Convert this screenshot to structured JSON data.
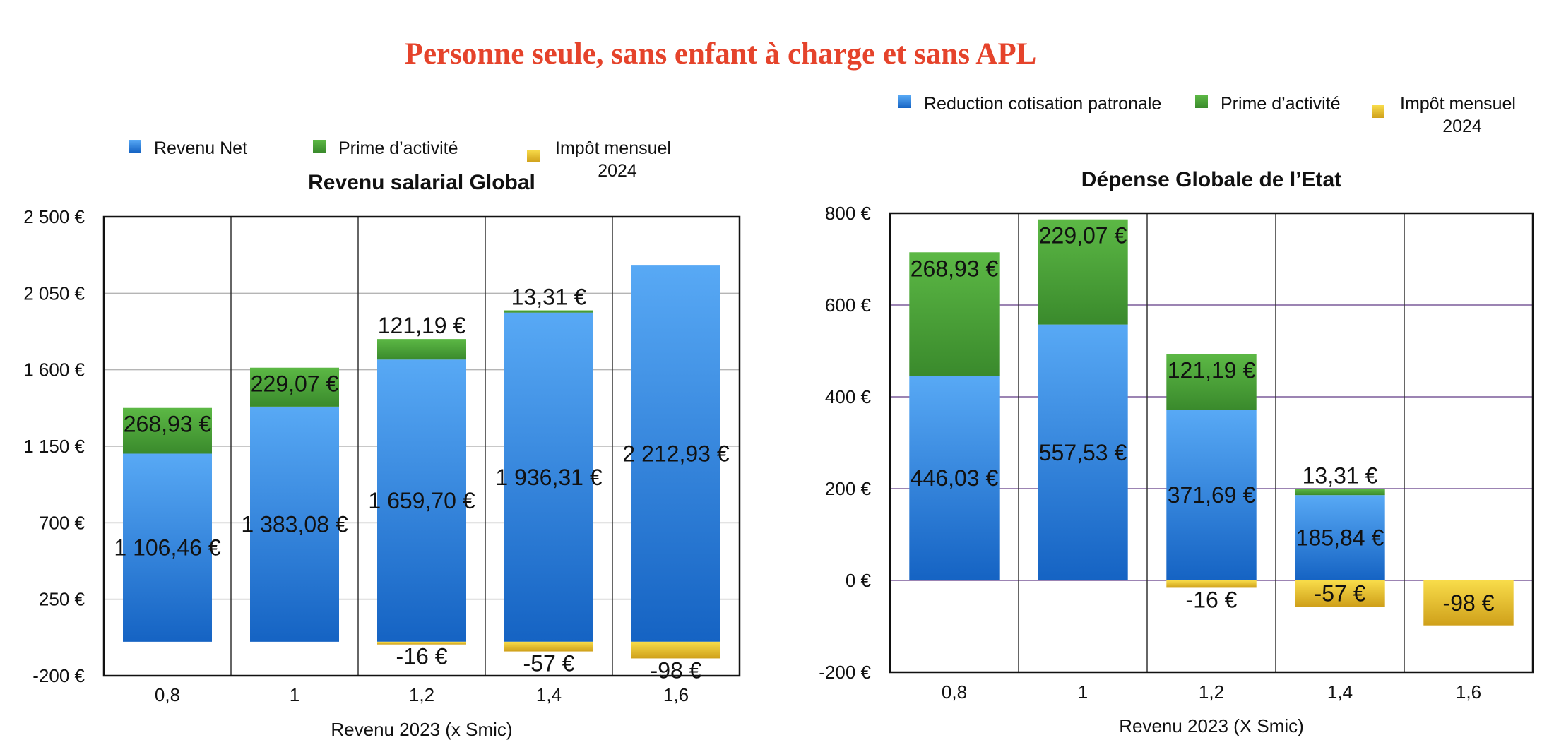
{
  "main_title": "Personne seule, sans enfant à charge et sans APL",
  "chart_data": [
    {
      "type": "bar",
      "stacked": true,
      "title": "Revenu salarial Global",
      "xlabel": "Revenu 2023 (x Smic)",
      "ylabel": "",
      "ylim": [
        -200,
        2500
      ],
      "yticks": [
        -200,
        250,
        700,
        1150,
        1600,
        2050,
        2500
      ],
      "ytick_labels": [
        "-200 €",
        "250 €",
        "700 €",
        "1 150 €",
        "1 600 €",
        "2 050 €",
        "2 500 €"
      ],
      "grid": true,
      "legend_position": "top",
      "categories": [
        "0,8",
        "1",
        "1,2",
        "1,4",
        "1,6"
      ],
      "series": [
        {
          "name": "Revenu Net",
          "color": "#2f7fde",
          "values": [
            1106.46,
            1383.08,
            1659.7,
            1936.31,
            2212.93
          ],
          "labels": [
            "1 106,46 €",
            "1 383,08 €",
            "1 659,70 €",
            "1 936,31 €",
            "2 212,93 €"
          ]
        },
        {
          "name": "Prime d’activité",
          "color": "#4a9e36",
          "values": [
            268.93,
            229.07,
            121.19,
            13.31,
            0
          ],
          "labels": [
            "268,93 €",
            "229,07 €",
            "121,19 €",
            "13,31 €",
            ""
          ]
        },
        {
          "name": "Impôt mensuel 2024",
          "color": "#e8bf26",
          "values": [
            0,
            0,
            -16,
            -57,
            -98
          ],
          "labels": [
            "",
            "",
            "-16 €",
            "-57 €",
            "-98 €"
          ]
        }
      ]
    },
    {
      "type": "bar",
      "stacked": true,
      "title": "Dépense Globale de l’Etat",
      "xlabel": "Revenu 2023 (X Smic)",
      "ylabel": "",
      "ylim": [
        -200,
        800
      ],
      "yticks": [
        -200,
        0,
        200,
        400,
        600,
        800
      ],
      "ytick_labels": [
        "-200 €",
        "0 €",
        "200 €",
        "400 €",
        "600 €",
        "800 €"
      ],
      "grid": true,
      "legend_position": "top",
      "categories": [
        "0,8",
        "1",
        "1,2",
        "1,4",
        "1,6"
      ],
      "series": [
        {
          "name": "Reduction cotisation patronale",
          "color": "#2f7fde",
          "values": [
            446.03,
            557.53,
            371.69,
            185.84,
            0
          ],
          "labels": [
            "446,03 €",
            "557,53 €",
            "371,69 €",
            "185,84 €",
            ""
          ]
        },
        {
          "name": "Prime d’activité",
          "color": "#4a9e36",
          "values": [
            268.93,
            229.07,
            121.19,
            13.31,
            0
          ],
          "labels": [
            "268,93 €",
            "229,07 €",
            "121,19 €",
            "13,31 €",
            ""
          ]
        },
        {
          "name": "Impôt mensuel 2024",
          "color": "#e8bf26",
          "values": [
            0,
            0,
            -16,
            -57,
            -98
          ],
          "labels": [
            "",
            "",
            "-16 €",
            "-57 €",
            "-98 €"
          ]
        }
      ]
    }
  ]
}
